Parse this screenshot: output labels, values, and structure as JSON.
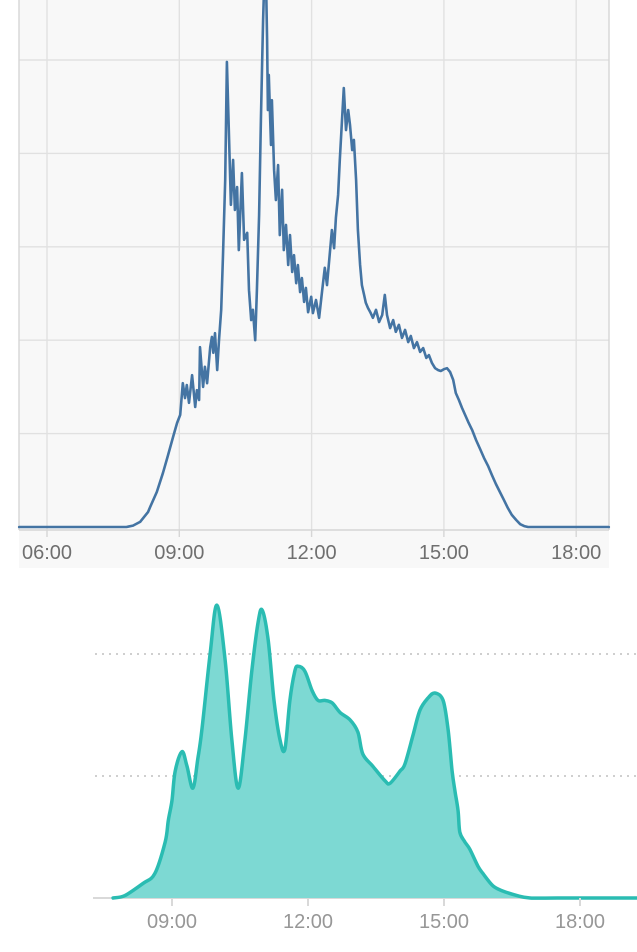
{
  "page": {
    "background": "#ffffff"
  },
  "chart_data": [
    {
      "id": "production-line",
      "type": "line",
      "title": "",
      "xlabel": "",
      "ylabel": "",
      "x_unit": "time of day (hours)",
      "y_unit": "unlabeled; values normalized so one horizontal gridline step = 20",
      "x_tick_labels": [
        "06:00",
        "09:00",
        "12:00",
        "15:00",
        "18:00"
      ],
      "x_tick_hours": [
        6,
        9,
        12,
        15,
        18
      ],
      "x_range_hours": [
        5.37,
        18.74
      ],
      "y_gridline_values": [
        20,
        40,
        60,
        80,
        100
      ],
      "y_visible_max": 112.8,
      "grid": true,
      "legend": false,
      "notes": "jagged solar-production style line; tallest peak near 10:55 is clipped by the top edge of the screenshot",
      "colors": {
        "line": "#4474a3",
        "plot_bg": "#f8f8f8",
        "grid": "#e1e1e1",
        "border": "#d6d6d6",
        "tick_text": "#6f6f6f"
      },
      "points": [
        [
          5.37,
          0
        ],
        [
          6,
          0
        ],
        [
          6.5,
          0
        ],
        [
          7,
          0
        ],
        [
          7.5,
          0
        ],
        [
          7.8,
          0
        ],
        [
          7.95,
          0.3
        ],
        [
          8.11,
          1.1
        ],
        [
          8.29,
          3.2
        ],
        [
          8.34,
          4.3
        ],
        [
          8.49,
          7.5
        ],
        [
          8.63,
          11.6
        ],
        [
          8.74,
          15.2
        ],
        [
          8.86,
          19.3
        ],
        [
          8.95,
          22.3
        ],
        [
          9.02,
          24
        ],
        [
          9.08,
          30.8
        ],
        [
          9.13,
          27.6
        ],
        [
          9.17,
          30.4
        ],
        [
          9.22,
          26.6
        ],
        [
          9.29,
          32.5
        ],
        [
          9.36,
          25.7
        ],
        [
          9.4,
          29.3
        ],
        [
          9.45,
          27.2
        ],
        [
          9.47,
          38.5
        ],
        [
          9.54,
          30
        ],
        [
          9.58,
          34.3
        ],
        [
          9.63,
          30.8
        ],
        [
          9.7,
          38.5
        ],
        [
          9.74,
          40.7
        ],
        [
          9.77,
          37.3
        ],
        [
          9.81,
          41.5
        ],
        [
          9.86,
          33.6
        ],
        [
          9.9,
          40
        ],
        [
          9.95,
          46.5
        ],
        [
          9.99,
          58.2
        ],
        [
          10.04,
          74.3
        ],
        [
          10.08,
          99.6
        ],
        [
          10.13,
          82.9
        ],
        [
          10.17,
          69
        ],
        [
          10.22,
          78.6
        ],
        [
          10.26,
          67.9
        ],
        [
          10.31,
          72.8
        ],
        [
          10.35,
          59.3
        ],
        [
          10.42,
          75.8
        ],
        [
          10.47,
          61.5
        ],
        [
          10.54,
          63
        ],
        [
          10.58,
          50.7
        ],
        [
          10.63,
          44.3
        ],
        [
          10.67,
          46.5
        ],
        [
          10.72,
          40
        ],
        [
          10.76,
          50.7
        ],
        [
          10.81,
          66.8
        ],
        [
          10.85,
          87.1
        ],
        [
          10.88,
          100
        ],
        [
          10.9,
          108.6
        ],
        [
          10.92,
          115
        ],
        [
          10.97,
          115
        ],
        [
          10.99,
          104.3
        ],
        [
          11.01,
          89.3
        ],
        [
          11.03,
          96.8
        ],
        [
          11.08,
          81.8
        ],
        [
          11.1,
          91.4
        ],
        [
          11.15,
          76.4
        ],
        [
          11.19,
          70
        ],
        [
          11.24,
          77.5
        ],
        [
          11.28,
          62.5
        ],
        [
          11.33,
          72.2
        ],
        [
          11.37,
          59.3
        ],
        [
          11.42,
          64.7
        ],
        [
          11.47,
          56.1
        ],
        [
          11.51,
          62.5
        ],
        [
          11.56,
          54.6
        ],
        [
          11.6,
          58.2
        ],
        [
          11.65,
          52.2
        ],
        [
          11.69,
          56.1
        ],
        [
          11.74,
          50.3
        ],
        [
          11.78,
          53.3
        ],
        [
          11.83,
          48.2
        ],
        [
          11.87,
          51.2
        ],
        [
          11.92,
          46
        ],
        [
          11.99,
          49.3
        ],
        [
          12.03,
          45.8
        ],
        [
          12.1,
          48.6
        ],
        [
          12.17,
          44.8
        ],
        [
          12.24,
          50.7
        ],
        [
          12.3,
          55.5
        ],
        [
          12.35,
          51.8
        ],
        [
          12.42,
          59.3
        ],
        [
          12.46,
          63.6
        ],
        [
          12.51,
          59.7
        ],
        [
          12.55,
          66.2
        ],
        [
          12.6,
          71.1
        ],
        [
          12.64,
          78.6
        ],
        [
          12.69,
          87.1
        ],
        [
          12.73,
          94
        ],
        [
          12.78,
          85
        ],
        [
          12.83,
          89.3
        ],
        [
          12.87,
          86.1
        ],
        [
          12.92,
          80.7
        ],
        [
          12.96,
          82.9
        ],
        [
          13.01,
          74.3
        ],
        [
          13.05,
          63.6
        ],
        [
          13.1,
          56.1
        ],
        [
          13.14,
          51.8
        ],
        [
          13.19,
          49.7
        ],
        [
          13.23,
          48
        ],
        [
          13.28,
          46.9
        ],
        [
          13.33,
          46
        ],
        [
          13.39,
          44.8
        ],
        [
          13.46,
          46.5
        ],
        [
          13.53,
          43.9
        ],
        [
          13.6,
          45.4
        ],
        [
          13.66,
          49.7
        ],
        [
          13.71,
          45.4
        ],
        [
          13.78,
          42.6
        ],
        [
          13.85,
          44.3
        ],
        [
          13.91,
          41.8
        ],
        [
          13.98,
          43.3
        ],
        [
          14.05,
          40.5
        ],
        [
          14.12,
          42.2
        ],
        [
          14.19,
          39.6
        ],
        [
          14.25,
          40.9
        ],
        [
          14.32,
          38.3
        ],
        [
          14.39,
          39.6
        ],
        [
          14.46,
          37.5
        ],
        [
          14.53,
          38.3
        ],
        [
          14.6,
          36.2
        ],
        [
          14.66,
          36.8
        ],
        [
          14.73,
          35.1
        ],
        [
          14.8,
          34
        ],
        [
          14.87,
          33.6
        ],
        [
          14.93,
          33.4
        ],
        [
          15,
          33.8
        ],
        [
          15.07,
          34
        ],
        [
          15.14,
          33.2
        ],
        [
          15.21,
          31.5
        ],
        [
          15.27,
          28.7
        ],
        [
          15.34,
          27.2
        ],
        [
          15.41,
          25.5
        ],
        [
          15.48,
          24
        ],
        [
          15.55,
          22.5
        ],
        [
          15.64,
          20.8
        ],
        [
          15.73,
          18.6
        ],
        [
          15.82,
          16.7
        ],
        [
          15.91,
          14.8
        ],
        [
          16,
          13.1
        ],
        [
          16.09,
          11.1
        ],
        [
          16.18,
          9.2
        ],
        [
          16.27,
          7.5
        ],
        [
          16.36,
          5.8
        ],
        [
          16.45,
          4.1
        ],
        [
          16.54,
          2.6
        ],
        [
          16.64,
          1.5
        ],
        [
          16.73,
          0.6
        ],
        [
          16.82,
          0.2
        ],
        [
          16.91,
          0
        ],
        [
          17.5,
          0
        ],
        [
          18,
          0
        ],
        [
          18.74,
          0
        ]
      ]
    },
    {
      "id": "production-area",
      "type": "area",
      "title": "",
      "xlabel": "",
      "ylabel": "",
      "x_unit": "time of day (hours)",
      "y_unit": "unlabeled; values normalized so dotted gridlines sit at 0.5 and 1.0",
      "x_tick_labels": [
        "09:00",
        "12:00",
        "15:00",
        "18:00"
      ],
      "x_tick_hours": [
        9,
        12,
        15,
        18
      ],
      "x_range_hours": [
        7.25,
        19.26
      ],
      "y_gridline_values": [
        0.5,
        1.0
      ],
      "y_visible_max": 1.35,
      "grid": true,
      "gridline_style": "dotted",
      "legend": false,
      "notes": "smooth filled area with rounded peaks near 10:00, 11:00, 11:45 and 14:50",
      "colors": {
        "stroke": "#2abcb2",
        "fill": "#7dd9d3",
        "grid_dotted": "#cfcfcf",
        "axis": "#d9d9d9",
        "tick_text": "#979797"
      },
      "points": [
        [
          7.7,
          0
        ],
        [
          7.96,
          0.01
        ],
        [
          8.36,
          0.06
        ],
        [
          8.62,
          0.1
        ],
        [
          8.85,
          0.23
        ],
        [
          8.92,
          0.32
        ],
        [
          9,
          0.4
        ],
        [
          9.07,
          0.52
        ],
        [
          9.22,
          0.6
        ],
        [
          9.33,
          0.54
        ],
        [
          9.46,
          0.45
        ],
        [
          9.57,
          0.57
        ],
        [
          9.66,
          0.69
        ],
        [
          9.84,
          1
        ],
        [
          9.99,
          1.2
        ],
        [
          10.17,
          0.98
        ],
        [
          10.32,
          0.65
        ],
        [
          10.46,
          0.45
        ],
        [
          10.61,
          0.65
        ],
        [
          10.76,
          0.93
        ],
        [
          10.9,
          1.13
        ],
        [
          10.99,
          1.18
        ],
        [
          11.12,
          1.06
        ],
        [
          11.25,
          0.81
        ],
        [
          11.38,
          0.65
        ],
        [
          11.49,
          0.61
        ],
        [
          11.6,
          0.81
        ],
        [
          11.71,
          0.93
        ],
        [
          11.78,
          0.95
        ],
        [
          11.93,
          0.93
        ],
        [
          12.09,
          0.85
        ],
        [
          12.22,
          0.81
        ],
        [
          12.37,
          0.81
        ],
        [
          12.53,
          0.8
        ],
        [
          12.71,
          0.76
        ],
        [
          12.93,
          0.73
        ],
        [
          13.1,
          0.68
        ],
        [
          13.21,
          0.59
        ],
        [
          13.43,
          0.54
        ],
        [
          13.7,
          0.48
        ],
        [
          13.81,
          0.47
        ],
        [
          14.03,
          0.52
        ],
        [
          14.14,
          0.55
        ],
        [
          14.32,
          0.67
        ],
        [
          14.47,
          0.77
        ],
        [
          14.65,
          0.82
        ],
        [
          14.8,
          0.84
        ],
        [
          14.98,
          0.81
        ],
        [
          15.09,
          0.69
        ],
        [
          15.18,
          0.52
        ],
        [
          15.24,
          0.44
        ],
        [
          15.31,
          0.36
        ],
        [
          15.35,
          0.27
        ],
        [
          15.46,
          0.23
        ],
        [
          15.57,
          0.2
        ],
        [
          15.75,
          0.13
        ],
        [
          15.86,
          0.1
        ],
        [
          16.08,
          0.05
        ],
        [
          16.28,
          0.03
        ],
        [
          16.61,
          0.01
        ],
        [
          16.9,
          0
        ],
        [
          17.5,
          0
        ],
        [
          18.5,
          0
        ],
        [
          19.26,
          0
        ]
      ]
    }
  ]
}
